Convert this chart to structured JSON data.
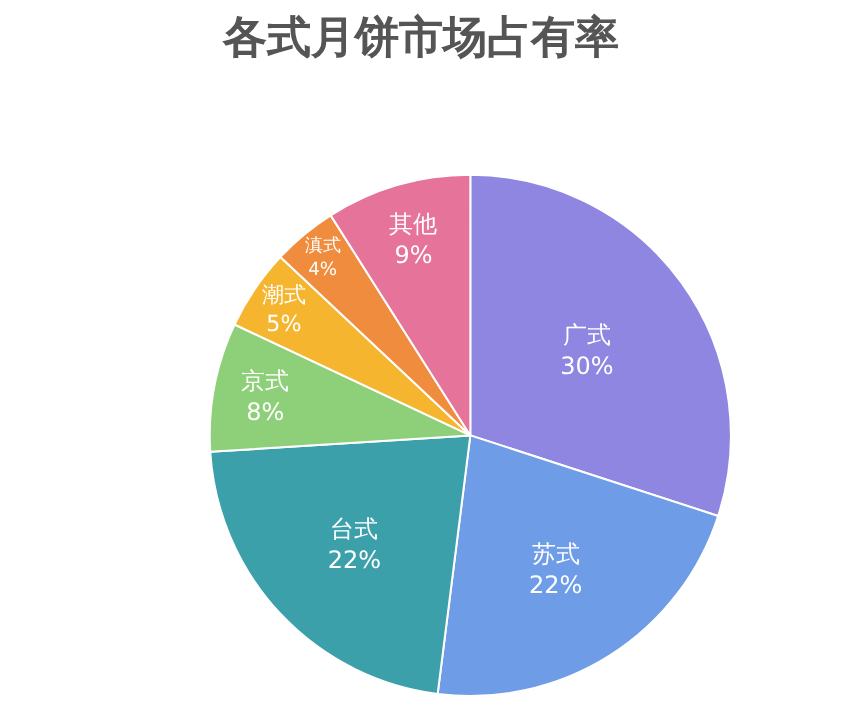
{
  "chart_data": {
    "type": "pie",
    "title": "各式月饼市场占有率",
    "categories": [
      "广式",
      "苏式",
      "台式",
      "京式",
      "潮式",
      "滇式",
      "其他"
    ],
    "values": [
      30,
      22,
      22,
      8,
      5,
      4,
      9
    ],
    "value_labels": [
      "30%",
      "22%",
      "22%",
      "8%",
      "5%",
      "4%",
      "9%"
    ],
    "colors": [
      "#8e86e0",
      "#6e9ce6",
      "#3ba0aa",
      "#8ed07a",
      "#f5b52e",
      "#f08c3e",
      "#e6739a"
    ],
    "legend": false
  }
}
